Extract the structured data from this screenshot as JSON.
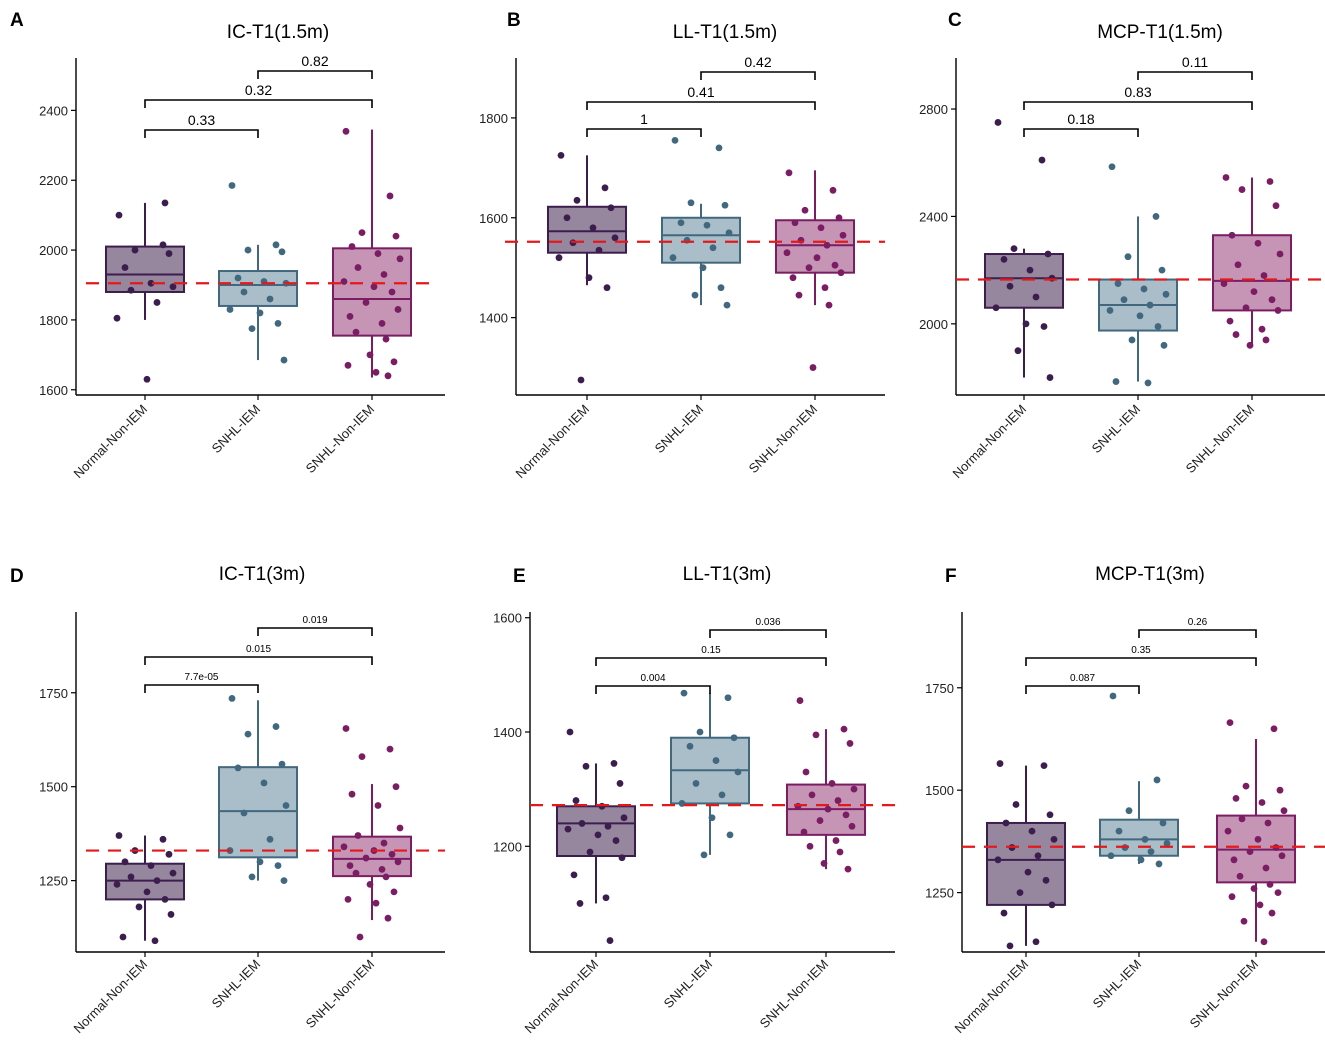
{
  "colors": {
    "group1": "#3b1e4e",
    "group1_fill": "#8e7d96",
    "group2": "#41687e",
    "group2_fill": "#a3b9c4",
    "group3": "#7a1d63",
    "group3_fill": "#c18cb0",
    "refline": "#e3191c",
    "axis": "#000000"
  },
  "chart_data": [
    {
      "type": "box",
      "panel": "A",
      "title": "IC-T1(1.5m)",
      "categories": [
        "Normal-Non-IEM",
        "SNHL-IEM",
        "SNHL-Non-IEM"
      ],
      "ylim": [
        1585,
        2550
      ],
      "yticks": [
        1600,
        1800,
        2000,
        2200,
        2400
      ],
      "ytick_labels": [
        "1600",
        "1800",
        "2000",
        "2200",
        "2400"
      ],
      "reference_line": 1905,
      "boxes": [
        {
          "q1": 1880,
          "median": 1930,
          "q3": 2010,
          "low": 1800,
          "high": 2135
        },
        {
          "q1": 1840,
          "median": 1900,
          "q3": 1940,
          "low": 1685,
          "high": 2015
        },
        {
          "q1": 1755,
          "median": 1860,
          "q3": 2005,
          "low": 1635,
          "high": 2345
        }
      ],
      "points": [
        [
          2100,
          2015,
          2000,
          1990,
          1950,
          1905,
          1895,
          1885,
          1850,
          1805,
          1630,
          2135
        ],
        [
          2185,
          2015,
          2000,
          1995,
          1920,
          1910,
          1905,
          1880,
          1860,
          1830,
          1820,
          1790,
          1775,
          1685
        ],
        [
          2340,
          2155,
          2050,
          2040,
          2010,
          1990,
          1975,
          1950,
          1930,
          1910,
          1895,
          1880,
          1850,
          1830,
          1810,
          1790,
          1765,
          1745,
          1700,
          1680,
          1670,
          1650,
          1640
        ]
      ],
      "comparisons": [
        {
          "groups": [
            1,
            2
          ],
          "label": "0.33"
        },
        {
          "groups": [
            1,
            3
          ],
          "label": "0.32"
        },
        {
          "groups": [
            2,
            3
          ],
          "label": "0.82"
        }
      ]
    },
    {
      "type": "box",
      "panel": "B",
      "title": "LL-T1(1.5m)",
      "categories": [
        "Normal-Non-IEM",
        "SNHL-IEM",
        "SNHL-Non-IEM"
      ],
      "ylim": [
        1245,
        1920
      ],
      "yticks": [
        1400,
        1600,
        1800
      ],
      "ytick_labels": [
        "1400",
        "1600",
        "1800"
      ],
      "reference_line": 1552,
      "boxes": [
        {
          "q1": 1530,
          "median": 1573,
          "q3": 1622,
          "low": 1465,
          "high": 1725
        },
        {
          "q1": 1510,
          "median": 1565,
          "q3": 1600,
          "low": 1425,
          "high": 1628
        },
        {
          "q1": 1490,
          "median": 1545,
          "q3": 1595,
          "low": 1425,
          "high": 1695
        }
      ],
      "points": [
        [
          1725,
          1660,
          1635,
          1620,
          1600,
          1580,
          1560,
          1550,
          1535,
          1520,
          1480,
          1460,
          1275
        ],
        [
          1755,
          1740,
          1630,
          1625,
          1590,
          1585,
          1570,
          1555,
          1540,
          1520,
          1500,
          1460,
          1445,
          1425
        ],
        [
          1690,
          1655,
          1615,
          1600,
          1590,
          1580,
          1565,
          1555,
          1545,
          1530,
          1520,
          1505,
          1500,
          1490,
          1480,
          1460,
          1445,
          1425,
          1300
        ]
      ],
      "comparisons": [
        {
          "groups": [
            1,
            2
          ],
          "label": "1"
        },
        {
          "groups": [
            1,
            3
          ],
          "label": "0.41"
        },
        {
          "groups": [
            2,
            3
          ],
          "label": "0.42"
        }
      ]
    },
    {
      "type": "box",
      "panel": "C",
      "title": "MCP-T1(1.5m)",
      "categories": [
        "Normal-Non-IEM",
        "SNHL-IEM",
        "SNHL-Non-IEM"
      ],
      "ylim": [
        1735,
        2990
      ],
      "yticks": [
        2000,
        2400,
        2800
      ],
      "ytick_labels": [
        "2000",
        "2400",
        "2800"
      ],
      "reference_line": 2165,
      "boxes": [
        {
          "q1": 2060,
          "median": 2170,
          "q3": 2260,
          "low": 1800,
          "high": 2280
        },
        {
          "q1": 1975,
          "median": 2070,
          "q3": 2165,
          "low": 1785,
          "high": 2400
        },
        {
          "q1": 2050,
          "median": 2160,
          "q3": 2330,
          "low": 1920,
          "high": 2545
        }
      ],
      "points": [
        [
          2750,
          2610,
          2280,
          2260,
          2240,
          2200,
          2170,
          2140,
          2100,
          2060,
          2000,
          1990,
          1900,
          1800
        ],
        [
          2585,
          2400,
          2250,
          2200,
          2150,
          2130,
          2110,
          2090,
          2070,
          2050,
          2030,
          1990,
          1940,
          1920,
          1785,
          1780
        ],
        [
          2545,
          2530,
          2500,
          2440,
          2330,
          2300,
          2260,
          2220,
          2180,
          2150,
          2120,
          2090,
          2060,
          2050,
          2010,
          1980,
          1960,
          1940,
          1920
        ]
      ],
      "comparisons": [
        {
          "groups": [
            1,
            2
          ],
          "label": "0.18"
        },
        {
          "groups": [
            1,
            3
          ],
          "label": "0.83"
        },
        {
          "groups": [
            2,
            3
          ],
          "label": "0.11"
        }
      ]
    },
    {
      "type": "box",
      "panel": "D",
      "title": "IC-T1(3m)",
      "categories": [
        "Normal-Non-IEM",
        "SNHL-IEM",
        "SNHL-Non-IEM"
      ],
      "ylim": [
        1060,
        1965
      ],
      "yticks": [
        1250,
        1500,
        1750
      ],
      "ytick_labels": [
        "1250",
        "1500",
        "1750"
      ],
      "reference_line": 1330,
      "boxes": [
        {
          "q1": 1200,
          "median": 1250,
          "q3": 1295,
          "low": 1090,
          "high": 1370
        },
        {
          "q1": 1312,
          "median": 1435,
          "q3": 1552,
          "low": 1250,
          "high": 1730
        },
        {
          "q1": 1262,
          "median": 1308,
          "q3": 1367,
          "low": 1145,
          "high": 1507
        }
      ],
      "points": [
        [
          1370,
          1360,
          1330,
          1320,
          1300,
          1290,
          1270,
          1260,
          1250,
          1240,
          1220,
          1200,
          1180,
          1160,
          1100,
          1090
        ],
        [
          1735,
          1660,
          1640,
          1560,
          1550,
          1510,
          1450,
          1430,
          1360,
          1330,
          1300,
          1290,
          1260,
          1250
        ],
        [
          1655,
          1600,
          1580,
          1500,
          1480,
          1450,
          1390,
          1370,
          1350,
          1340,
          1330,
          1320,
          1310,
          1300,
          1290,
          1280,
          1270,
          1260,
          1240,
          1220,
          1200,
          1190,
          1150,
          1100
        ]
      ],
      "comparisons": [
        {
          "groups": [
            1,
            2
          ],
          "label": "7.7e-05"
        },
        {
          "groups": [
            1,
            3
          ],
          "label": "0.015"
        },
        {
          "groups": [
            2,
            3
          ],
          "label": "0.019"
        }
      ]
    },
    {
      "type": "box",
      "panel": "E",
      "title": "LL-T1(3m)",
      "categories": [
        "Normal-Non-IEM",
        "SNHL-IEM",
        "SNHL-Non-IEM"
      ],
      "ylim": [
        1015,
        1610
      ],
      "yticks": [
        1200,
        1400,
        1600
      ],
      "ytick_labels": [
        "1200",
        "1400",
        "1600"
      ],
      "reference_line": 1272,
      "boxes": [
        {
          "q1": 1183,
          "median": 1240,
          "q3": 1270,
          "low": 1100,
          "high": 1345
        },
        {
          "q1": 1275,
          "median": 1333,
          "q3": 1390,
          "low": 1185,
          "high": 1468
        },
        {
          "q1": 1220,
          "median": 1265,
          "q3": 1308,
          "low": 1160,
          "high": 1405
        }
      ],
      "points": [
        [
          1400,
          1345,
          1340,
          1310,
          1280,
          1270,
          1250,
          1240,
          1235,
          1230,
          1220,
          1210,
          1190,
          1180,
          1150,
          1110,
          1100,
          1035
        ],
        [
          1468,
          1460,
          1400,
          1390,
          1375,
          1350,
          1330,
          1310,
          1290,
          1275,
          1250,
          1220,
          1185
        ],
        [
          1455,
          1405,
          1395,
          1380,
          1330,
          1310,
          1300,
          1290,
          1280,
          1270,
          1265,
          1255,
          1245,
          1235,
          1225,
          1210,
          1200,
          1190,
          1170,
          1160
        ]
      ],
      "comparisons": [
        {
          "groups": [
            1,
            2
          ],
          "label": "0.004"
        },
        {
          "groups": [
            1,
            3
          ],
          "label": "0.15"
        },
        {
          "groups": [
            2,
            3
          ],
          "label": "0.036"
        }
      ]
    },
    {
      "type": "box",
      "panel": "F",
      "title": "MCP-T1(3m)",
      "categories": [
        "Normal-Non-IEM",
        "SNHL-IEM",
        "SNHL-Non-IEM"
      ],
      "ylim": [
        1105,
        1935
      ],
      "yticks": [
        1250,
        1500,
        1750
      ],
      "ytick_labels": [
        "1250",
        "1500",
        "1750"
      ],
      "reference_line": 1362,
      "boxes": [
        {
          "q1": 1220,
          "median": 1330,
          "q3": 1420,
          "low": 1120,
          "high": 1560
        },
        {
          "q1": 1340,
          "median": 1380,
          "q3": 1428,
          "low": 1320,
          "high": 1522
        },
        {
          "q1": 1275,
          "median": 1355,
          "q3": 1438,
          "low": 1130,
          "high": 1625
        }
      ],
      "points": [
        [
          1565,
          1560,
          1465,
          1440,
          1420,
          1400,
          1380,
          1360,
          1340,
          1330,
          1300,
          1280,
          1250,
          1220,
          1200,
          1130,
          1120
        ],
        [
          1730,
          1525,
          1450,
          1420,
          1400,
          1380,
          1370,
          1360,
          1350,
          1340,
          1330,
          1320
        ],
        [
          1665,
          1650,
          1510,
          1500,
          1480,
          1470,
          1450,
          1430,
          1420,
          1400,
          1380,
          1360,
          1350,
          1340,
          1330,
          1310,
          1290,
          1270,
          1260,
          1250,
          1240,
          1220,
          1200,
          1180,
          1130
        ]
      ],
      "comparisons": [
        {
          "groups": [
            1,
            2
          ],
          "label": "0.087"
        },
        {
          "groups": [
            1,
            3
          ],
          "label": "0.35"
        },
        {
          "groups": [
            2,
            3
          ],
          "label": "0.26"
        }
      ]
    }
  ]
}
